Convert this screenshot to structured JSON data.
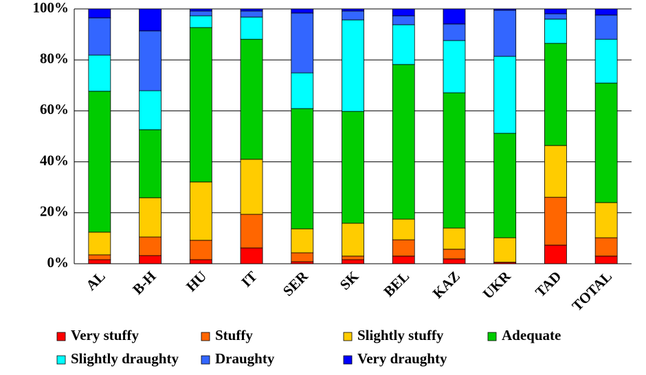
{
  "chart_data": {
    "type": "stacked_bar",
    "categories": [
      "AL",
      "B-H",
      "HU",
      "IT",
      "SER",
      "SK",
      "BEL",
      "KAZ",
      "UKR",
      "TAD",
      "TOTAL"
    ],
    "series": [
      {
        "name": "Very stuffy",
        "color": "#ff0000",
        "values": [
          1.6,
          3.2,
          1.6,
          6.2,
          0.8,
          1.6,
          3.0,
          1.9,
          0.5,
          7.3,
          3.0
        ]
      },
      {
        "name": "Stuffy",
        "color": "#ff6600",
        "values": [
          1.9,
          7.3,
          7.6,
          13.2,
          3.5,
          1.4,
          6.4,
          3.8,
          0.1,
          18.8,
          7.2
        ]
      },
      {
        "name": "Slightly stuffy",
        "color": "#ffcc00",
        "values": [
          8.9,
          15.4,
          22.9,
          21.6,
          9.4,
          12.9,
          8.1,
          8.3,
          9.6,
          20.3,
          13.8
        ]
      },
      {
        "name": "Adequate",
        "color": "#00cc00",
        "values": [
          55.3,
          26.7,
          60.6,
          47.1,
          47.2,
          43.9,
          60.7,
          53.1,
          41.0,
          40.1,
          46.9
        ]
      },
      {
        "name": "Slightly draughty",
        "color": "#00ffff",
        "values": [
          14.2,
          15.3,
          4.6,
          8.7,
          14.0,
          35.9,
          15.6,
          20.5,
          30.2,
          9.5,
          17.2
        ]
      },
      {
        "name": "Draughty",
        "color": "#3366ff",
        "values": [
          14.6,
          23.5,
          1.9,
          2.4,
          23.5,
          3.5,
          3.5,
          6.5,
          18.1,
          2.1,
          9.5
        ]
      },
      {
        "name": "Very draughty",
        "color": "#0000ff",
        "values": [
          3.5,
          8.6,
          0.8,
          0.8,
          1.6,
          0.8,
          2.7,
          5.9,
          0.5,
          1.9,
          2.4
        ]
      }
    ],
    "ylim": [
      0,
      100
    ],
    "yticks": [
      {
        "value": 0,
        "label": "0%"
      },
      {
        "value": 20,
        "label": "20%"
      },
      {
        "value": 40,
        "label": "40%"
      },
      {
        "value": 60,
        "label": "60%"
      },
      {
        "value": 80,
        "label": "80%"
      },
      {
        "value": 100,
        "label": "100%"
      }
    ],
    "grid": true
  }
}
